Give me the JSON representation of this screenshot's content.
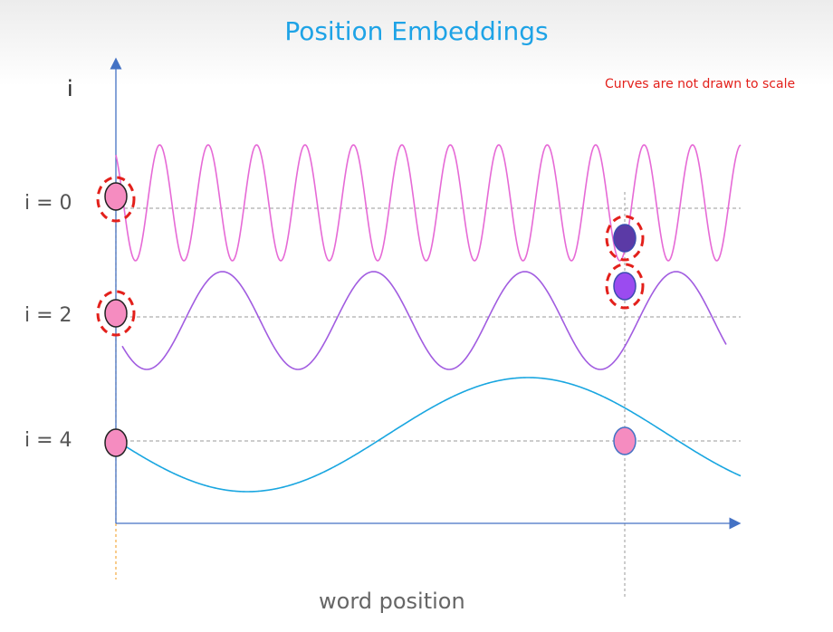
{
  "diagram": {
    "title": "Position Embeddings",
    "note": "Curves are not drawn to scale",
    "y_axis_label": "i",
    "x_axis_label": "word position",
    "rows": [
      {
        "label": "i = 0",
        "color": "#e66ad6",
        "marker_color": "#f58cc0"
      },
      {
        "label": "i = 2",
        "color": "#a15ce0",
        "marker_color": "#f58cc0"
      },
      {
        "label": "i = 4",
        "color": "#19a6e0",
        "marker_color": "#f58cc0"
      }
    ],
    "highlight_markers": [
      {
        "row": 0,
        "color": "#5b3aa6"
      },
      {
        "row": 1,
        "color": "#9b4bf0"
      }
    ],
    "axis_color": "#4472c4",
    "highlight_ring_color": "#e3201b"
  }
}
